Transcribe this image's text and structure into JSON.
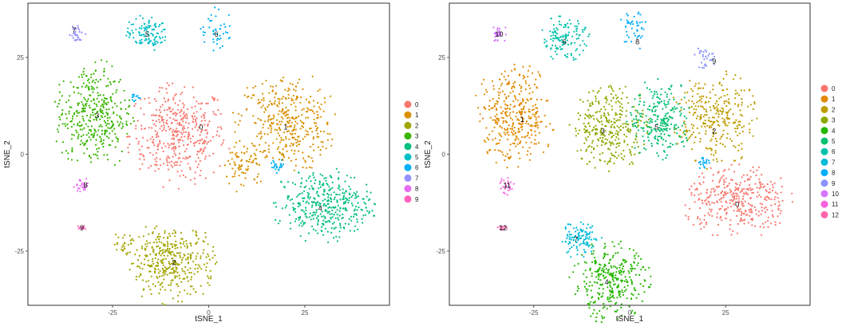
{
  "chart_data": [
    {
      "type": "scatter",
      "title": "",
      "xlabel": "tSNE_1",
      "ylabel": "tSNE_2",
      "xlim": [
        -47,
        47
      ],
      "ylim": [
        -39,
        39
      ],
      "grid": false,
      "legend_position": "right",
      "x_ticks": [
        {
          "value": -25,
          "label": "-25"
        },
        {
          "value": 0,
          "label": "0"
        },
        {
          "value": 25,
          "label": "25"
        }
      ],
      "y_ticks": [
        {
          "value": 25,
          "label": "25"
        },
        {
          "value": 0,
          "label": "0"
        },
        {
          "value": -25,
          "label": "-25"
        }
      ],
      "series": [
        {
          "name": "0",
          "color": "#F8766D",
          "clusters": [
            {
              "x": -8,
              "y": 5,
              "rx": 14,
              "ry": 14,
              "n": 420
            }
          ]
        },
        {
          "name": "1",
          "color": "#D89000",
          "clusters": [
            {
              "x": 20,
              "y": 8,
              "rx": 14,
              "ry": 14,
              "n": 380
            },
            {
              "x": 9,
              "y": -3,
              "rx": 6,
              "ry": 7,
              "n": 70
            }
          ]
        },
        {
          "name": "2",
          "color": "#A3A500",
          "clusters": [
            {
              "x": -10,
              "y": -28,
              "rx": 13,
              "ry": 11,
              "n": 380
            },
            {
              "x": -22,
              "y": -23,
              "rx": 4,
              "ry": 3,
              "n": 25
            }
          ]
        },
        {
          "name": "3",
          "color": "#39B600",
          "clusters": [
            {
              "x": -30,
              "y": 10,
              "rx": 11,
              "ry": 15,
              "n": 380
            }
          ]
        },
        {
          "name": "4",
          "color": "#00BF7D",
          "clusters": [
            {
              "x": 30,
              "y": -13,
              "rx": 14,
              "ry": 10,
              "n": 380
            }
          ]
        },
        {
          "name": "5",
          "color": "#00BFC4",
          "clusters": [
            {
              "x": -16,
              "y": 31,
              "rx": 6,
              "ry": 5,
              "n": 110
            }
          ]
        },
        {
          "name": "6",
          "color": "#00B0F6",
          "clusters": [
            {
              "x": 2,
              "y": 32,
              "rx": 5,
              "ry": 6,
              "n": 45
            },
            {
              "x": 18,
              "y": -3,
              "rx": 2,
              "ry": 2,
              "n": 25
            },
            {
              "x": -19,
              "y": 15,
              "rx": 1.5,
              "ry": 2,
              "n": 12
            }
          ]
        },
        {
          "name": "7",
          "color": "#9590FF",
          "clusters": [
            {
              "x": -34,
              "y": 31,
              "rx": 2.5,
              "ry": 2.5,
              "n": 30
            }
          ]
        },
        {
          "name": "8",
          "color": "#E76BF3",
          "clusters": [
            {
              "x": -33,
              "y": -8,
              "rx": 2.5,
              "ry": 2,
              "n": 25
            }
          ]
        },
        {
          "name": "9",
          "color": "#FF62BC",
          "clusters": [
            {
              "x": -33,
              "y": -19,
              "rx": 1.5,
              "ry": 0.8,
              "n": 12
            }
          ]
        }
      ],
      "annotations": [
        {
          "text": "0",
          "x": -2,
          "y": 7
        },
        {
          "text": "1",
          "x": 20,
          "y": 7
        },
        {
          "text": "2",
          "x": -9,
          "y": -28
        },
        {
          "text": "3",
          "x": -29,
          "y": 10
        },
        {
          "text": "4",
          "x": 29,
          "y": -14
        },
        {
          "text": "5",
          "x": -16,
          "y": 31
        },
        {
          "text": "6",
          "x": 2,
          "y": 31
        },
        {
          "text": "7",
          "x": -35,
          "y": 32
        },
        {
          "text": "8",
          "x": -32,
          "y": -8
        },
        {
          "text": "9",
          "x": -33,
          "y": -19
        }
      ]
    },
    {
      "type": "scatter",
      "title": "",
      "xlabel": "tSNE_1",
      "ylabel": "tSNE_2",
      "xlim": [
        -47,
        47
      ],
      "ylim": [
        -39,
        39
      ],
      "grid": false,
      "legend_position": "right",
      "x_ticks": [
        {
          "value": -25,
          "label": "-25"
        },
        {
          "value": 0,
          "label": "0"
        },
        {
          "value": 25,
          "label": "25"
        }
      ],
      "y_ticks": [
        {
          "value": 25,
          "label": "25"
        },
        {
          "value": 0,
          "label": "0"
        },
        {
          "value": -25,
          "label": "-25"
        }
      ],
      "series": [
        {
          "name": "0",
          "color": "#F8766D",
          "clusters": [
            {
              "x": 28,
              "y": -12,
              "rx": 15,
              "ry": 10,
              "n": 360
            }
          ]
        },
        {
          "name": "1",
          "color": "#E18A00",
          "clusters": [
            {
              "x": -30,
              "y": 10,
              "rx": 11,
              "ry": 14,
              "n": 360
            }
          ]
        },
        {
          "name": "2",
          "color": "#BE9C00",
          "clusters": [
            {
              "x": 22,
              "y": 9,
              "rx": 12,
              "ry": 13,
              "n": 300
            }
          ]
        },
        {
          "name": "3",
          "color": "#8CAB00",
          "clusters": [
            {
              "x": -5,
              "y": 7,
              "rx": 11,
              "ry": 12,
              "n": 320
            }
          ]
        },
        {
          "name": "4",
          "color": "#24B700",
          "clusters": [
            {
              "x": -5,
              "y": -33,
              "rx": 11,
              "ry": 11,
              "n": 320
            }
          ]
        },
        {
          "name": "5",
          "color": "#00BE70",
          "clusters": [
            {
              "x": 8,
              "y": 9,
              "rx": 9,
              "ry": 11,
              "n": 240
            }
          ]
        },
        {
          "name": "6",
          "color": "#00C1AB",
          "clusters": [
            {
              "x": -17,
              "y": 30,
              "rx": 7,
              "ry": 6,
              "n": 130
            }
          ]
        },
        {
          "name": "7",
          "color": "#00BBDA",
          "clusters": [
            {
              "x": -13,
              "y": -22,
              "rx": 6,
              "ry": 5,
              "n": 110
            }
          ]
        },
        {
          "name": "8",
          "color": "#00ACFC",
          "clusters": [
            {
              "x": 1,
              "y": 32,
              "rx": 4,
              "ry": 6,
              "n": 45
            },
            {
              "x": 19,
              "y": -2,
              "rx": 2,
              "ry": 2,
              "n": 20
            }
          ]
        },
        {
          "name": "9",
          "color": "#8B93FF",
          "clusters": [
            {
              "x": 20,
              "y": 25,
              "rx": 4,
              "ry": 3,
              "n": 30
            }
          ]
        },
        {
          "name": "10",
          "color": "#D575FE",
          "clusters": [
            {
              "x": -34,
              "y": 31,
              "rx": 2.5,
              "ry": 2.5,
              "n": 30
            }
          ]
        },
        {
          "name": "11",
          "color": "#F962DD",
          "clusters": [
            {
              "x": -32,
              "y": -8,
              "rx": 2,
              "ry": 2.5,
              "n": 25
            }
          ]
        },
        {
          "name": "12",
          "color": "#FF65AC",
          "clusters": [
            {
              "x": -33,
              "y": -19,
              "rx": 1.5,
              "ry": 0.8,
              "n": 12
            }
          ]
        }
      ],
      "annotations": [
        {
          "text": "0",
          "x": 28,
          "y": -13
        },
        {
          "text": "1",
          "x": -28,
          "y": 9
        },
        {
          "text": "2",
          "x": 22,
          "y": 6
        },
        {
          "text": "3",
          "x": -7,
          "y": 6
        },
        {
          "text": "4",
          "x": -6,
          "y": -33
        },
        {
          "text": "5",
          "x": 7,
          "y": 7
        },
        {
          "text": "6",
          "x": -17,
          "y": 29
        },
        {
          "text": "7",
          "x": -14,
          "y": -22
        },
        {
          "text": "8",
          "x": 2,
          "y": 29
        },
        {
          "text": "9",
          "x": 22,
          "y": 24
        },
        {
          "text": "10",
          "x": -34,
          "y": 31
        },
        {
          "text": "11",
          "x": -32,
          "y": -8
        },
        {
          "text": "12",
          "x": -33,
          "y": -19
        }
      ]
    }
  ]
}
